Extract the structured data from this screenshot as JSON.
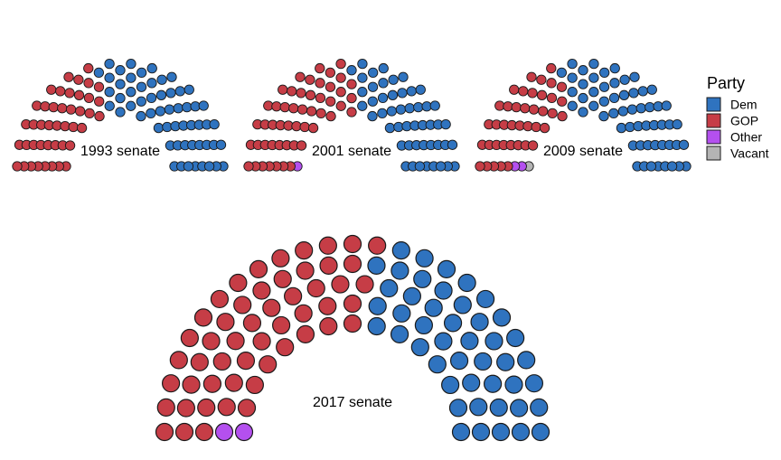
{
  "legend": {
    "title": "Party",
    "placement": "right",
    "items": [
      {
        "label": "Dem",
        "color": "#2f73bf"
      },
      {
        "label": "GOP",
        "color": "#c63d46"
      },
      {
        "label": "Other",
        "color": "#b450ef"
      },
      {
        "label": "Vacant",
        "color": "#b4b4b4"
      }
    ]
  },
  "chart_data": [
    {
      "type": "parliament",
      "title": "1993 senate",
      "total_seats": 100,
      "series": [
        {
          "name": "GOP",
          "values": [
            43
          ]
        },
        {
          "name": "Dem",
          "values": [
            57
          ]
        }
      ]
    },
    {
      "type": "parliament",
      "title": "2001 senate",
      "total_seats": 100,
      "series": [
        {
          "name": "Other",
          "values": [
            1
          ]
        },
        {
          "name": "GOP",
          "values": [
            50
          ]
        },
        {
          "name": "Dem",
          "values": [
            49
          ]
        }
      ]
    },
    {
      "type": "parliament",
      "title": "2009 senate",
      "total_seats": 100,
      "series": [
        {
          "name": "Vacant",
          "values": [
            1
          ]
        },
        {
          "name": "Other",
          "values": [
            2
          ]
        },
        {
          "name": "GOP",
          "values": [
            40
          ]
        },
        {
          "name": "Dem",
          "values": [
            57
          ]
        }
      ]
    },
    {
      "type": "parliament",
      "title": "2017 senate",
      "total_seats": 100,
      "series": [
        {
          "name": "Other",
          "values": [
            2
          ]
        },
        {
          "name": "GOP",
          "values": [
            52
          ]
        },
        {
          "name": "Dem",
          "values": [
            46
          ]
        }
      ]
    }
  ]
}
